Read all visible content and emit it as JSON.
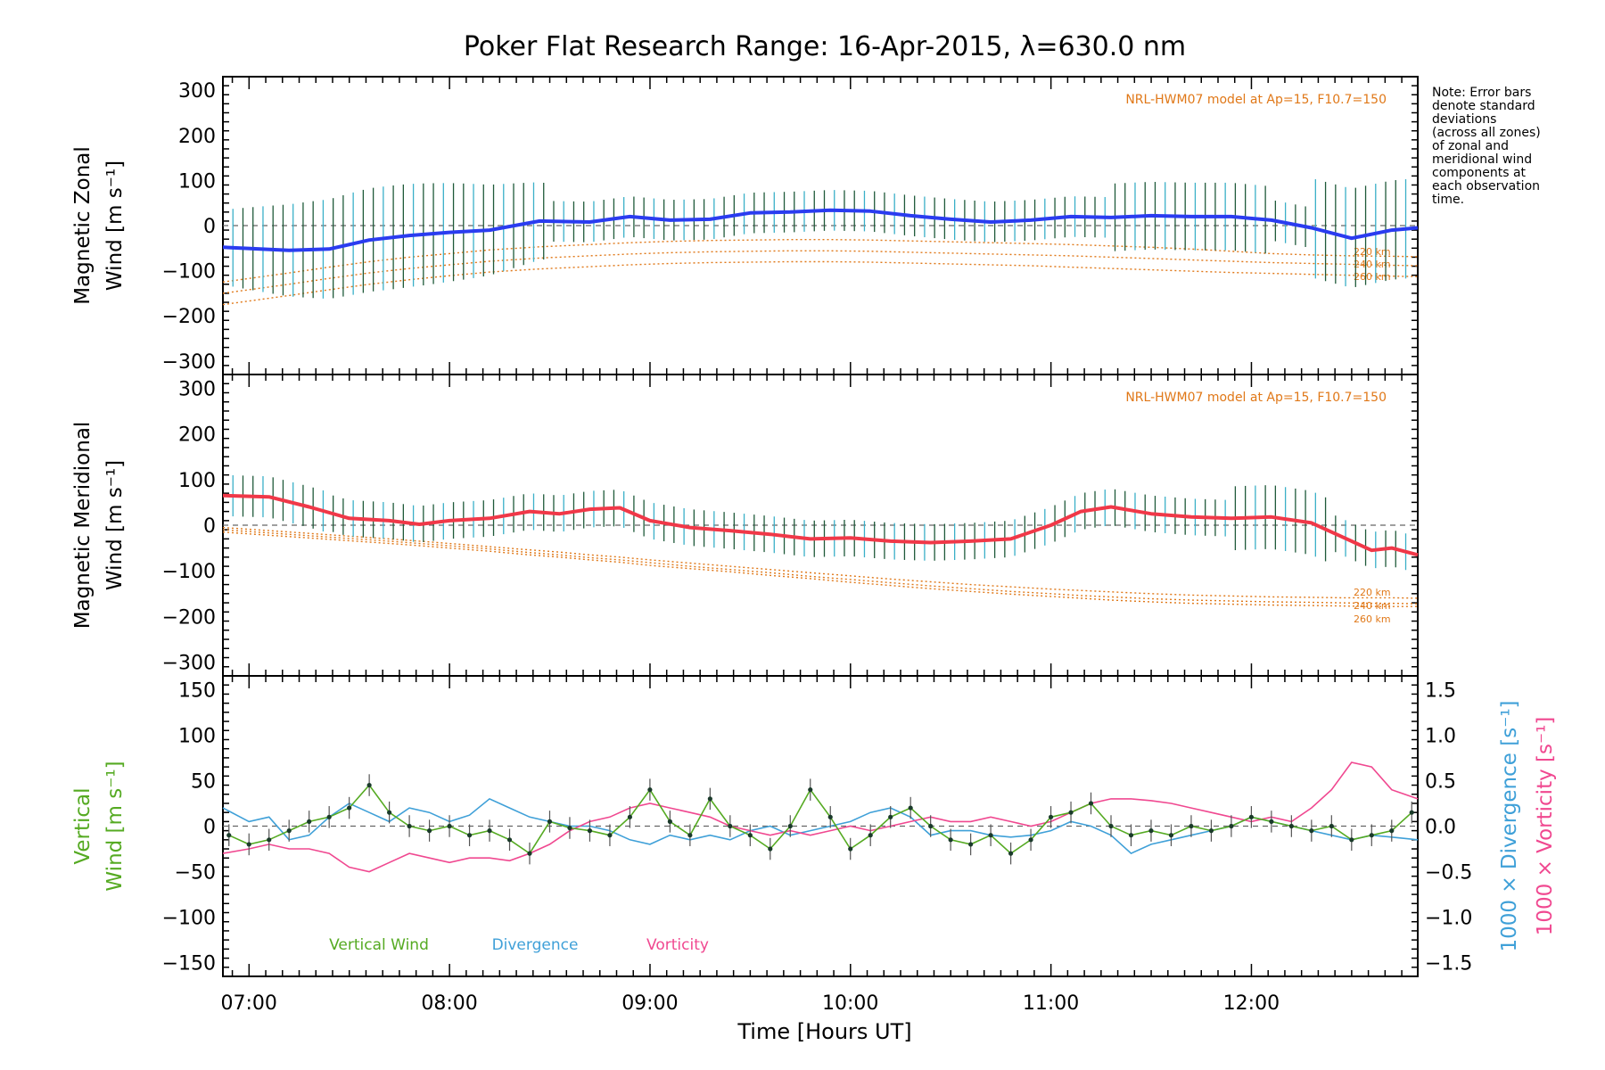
{
  "title": "Poker Flat Research Range: 16-Apr-2015, λ=630.0 nm",
  "xlabel": "Time [Hours UT]",
  "x_ticklabels": [
    "07:00",
    "08:00",
    "09:00",
    "10:00",
    "11:00",
    "12:00"
  ],
  "note_lines": [
    "Note: Error bars",
    "denote standard",
    "deviations",
    "(across all zones)",
    "of zonal and",
    "meridional wind",
    "components at",
    "each observation",
    "time."
  ],
  "model_label": "NRL-HWM07 model at Ap=15, F10.7=150",
  "altitude_labels": [
    "220 km",
    "240 km",
    "260 km"
  ],
  "panel_zonal": {
    "ylabel_line1": "Magnetic Zonal",
    "ylabel_line2": "Wind [m s⁻¹]"
  },
  "panel_meridional": {
    "ylabel_line1": "Magnetic Meridional",
    "ylabel_line2": "Wind [m s⁻¹]"
  },
  "panel_vertical": {
    "ylabel_line1": "Vertical",
    "ylabel_line2": "Wind [m s⁻¹]",
    "right_label_div": "1000 × Divergence [s⁻¹]",
    "right_label_vor": "1000 × Vorticity [s⁻¹]",
    "legend": [
      "Vertical Wind",
      "Divergence",
      "Vorticity"
    ]
  },
  "colors": {
    "zonal": "#2a3cf0",
    "meridional": "#f03848",
    "vertical": "#55aa22",
    "divergence": "#3fa0d8",
    "vorticity": "#f04890",
    "model": "#e07818",
    "errorbar": "#1f5a3a"
  },
  "chart_data": [
    {
      "type": "line",
      "panel": "zonal",
      "x_unit": "hours UT",
      "xlim": [
        6.87,
        12.83
      ],
      "ylim": [
        -330,
        330
      ],
      "yticks": [
        -300,
        -200,
        -100,
        0,
        100,
        200,
        300
      ],
      "x": [
        6.87,
        7.2,
        7.4,
        7.6,
        7.8,
        8.0,
        8.2,
        8.45,
        8.7,
        8.9,
        9.1,
        9.3,
        9.5,
        9.7,
        9.9,
        10.1,
        10.3,
        10.5,
        10.7,
        10.9,
        11.1,
        11.3,
        11.5,
        11.7,
        11.9,
        12.1,
        12.3,
        12.5,
        12.7,
        12.83
      ],
      "series": [
        {
          "values": [
            -48,
            -55,
            -52,
            -32,
            -22,
            -15,
            -10,
            10,
            8,
            20,
            12,
            14,
            28,
            30,
            34,
            32,
            22,
            14,
            8,
            12,
            20,
            18,
            22,
            20,
            20,
            12,
            -5,
            -28,
            -10,
            -5
          ]
        }
      ],
      "model_series": [
        {
          "name": "220 km",
          "values": [
            -125,
            -105,
            -92,
            -80,
            -70,
            -62,
            -54,
            -47,
            -42,
            -38,
            -35,
            -33,
            -32,
            -31,
            -31,
            -32,
            -34,
            -36,
            -38,
            -40,
            -42,
            -45,
            -48,
            -52,
            -57,
            -62,
            -65,
            -67,
            -68,
            -69
          ]
        },
        {
          "name": "240 km",
          "values": [
            -150,
            -130,
            -117,
            -105,
            -95,
            -87,
            -79,
            -72,
            -67,
            -63,
            -60,
            -58,
            -57,
            -56,
            -56,
            -57,
            -59,
            -61,
            -63,
            -65,
            -67,
            -70,
            -73,
            -76,
            -79,
            -82,
            -84,
            -86,
            -88,
            -89
          ]
        },
        {
          "name": "260 km",
          "values": [
            -175,
            -155,
            -142,
            -130,
            -120,
            -111,
            -103,
            -96,
            -91,
            -87,
            -84,
            -82,
            -81,
            -80,
            -80,
            -81,
            -83,
            -85,
            -87,
            -89,
            -92,
            -95,
            -98,
            -101,
            -104,
            -106,
            -108,
            -110,
            -112,
            -113
          ]
        }
      ]
    },
    {
      "type": "line",
      "panel": "meridional",
      "x_unit": "hours UT",
      "xlim": [
        6.87,
        12.83
      ],
      "ylim": [
        -330,
        330
      ],
      "yticks": [
        -300,
        -200,
        -100,
        0,
        100,
        200,
        300
      ],
      "x": [
        6.87,
        7.1,
        7.3,
        7.5,
        7.7,
        7.85,
        8.0,
        8.2,
        8.4,
        8.55,
        8.7,
        8.85,
        9.0,
        9.2,
        9.4,
        9.6,
        9.8,
        10.0,
        10.2,
        10.4,
        10.6,
        10.8,
        11.0,
        11.15,
        11.3,
        11.5,
        11.7,
        11.9,
        12.1,
        12.3,
        12.45,
        12.6,
        12.7,
        12.83
      ],
      "series": [
        {
          "values": [
            65,
            62,
            40,
            15,
            10,
            2,
            10,
            15,
            30,
            25,
            35,
            38,
            10,
            -5,
            -12,
            -20,
            -30,
            -28,
            -35,
            -38,
            -35,
            -30,
            0,
            30,
            40,
            25,
            18,
            15,
            18,
            5,
            -25,
            -55,
            -50,
            -65
          ]
        }
      ],
      "model_series": [
        {
          "name": "220 km",
          "values": [
            -5,
            -12,
            -18,
            -24,
            -30,
            -35,
            -40,
            -47,
            -54,
            -59,
            -65,
            -70,
            -76,
            -83,
            -90,
            -97,
            -104,
            -111,
            -118,
            -124,
            -130,
            -135,
            -140,
            -143,
            -146,
            -150,
            -153,
            -155,
            -157,
            -158,
            -159,
            -159,
            -159,
            -160
          ]
        },
        {
          "name": "240 km",
          "values": [
            -10,
            -17,
            -23,
            -29,
            -35,
            -40,
            -45,
            -52,
            -60,
            -65,
            -71,
            -76,
            -82,
            -90,
            -97,
            -104,
            -112,
            -119,
            -126,
            -133,
            -139,
            -145,
            -150,
            -154,
            -157,
            -161,
            -164,
            -166,
            -168,
            -169,
            -170,
            -171,
            -171,
            -172
          ]
        },
        {
          "name": "260 km",
          "values": [
            -15,
            -22,
            -28,
            -34,
            -40,
            -45,
            -50,
            -57,
            -65,
            -70,
            -76,
            -81,
            -88,
            -95,
            -102,
            -110,
            -117,
            -125,
            -132,
            -139,
            -145,
            -151,
            -156,
            -160,
            -164,
            -168,
            -171,
            -173,
            -175,
            -176,
            -177,
            -178,
            -178,
            -178
          ]
        }
      ]
    },
    {
      "type": "line",
      "panel": "vertical",
      "x_unit": "hours UT",
      "xlim": [
        6.87,
        12.83
      ],
      "ylim": [
        -165,
        165
      ],
      "yticks": [
        -150,
        -100,
        -50,
        0,
        50,
        100,
        150
      ],
      "y2lim": [
        -1.65,
        1.65
      ],
      "y2ticks": [
        -1.5,
        -1.0,
        -0.5,
        0.0,
        0.5,
        1.0,
        1.5
      ],
      "vertical_wind": {
        "x": [
          6.9,
          7.0,
          7.1,
          7.2,
          7.3,
          7.4,
          7.5,
          7.6,
          7.7,
          7.8,
          7.9,
          8.0,
          8.1,
          8.2,
          8.3,
          8.4,
          8.5,
          8.6,
          8.7,
          8.8,
          8.9,
          9.0,
          9.1,
          9.2,
          9.3,
          9.4,
          9.5,
          9.6,
          9.7,
          9.8,
          9.9,
          10.0,
          10.1,
          10.2,
          10.3,
          10.4,
          10.5,
          10.6,
          10.7,
          10.8,
          10.9,
          11.0,
          11.1,
          11.2,
          11.3,
          11.4,
          11.5,
          11.6,
          11.7,
          11.8,
          11.9,
          12.0,
          12.1,
          12.2,
          12.3,
          12.4,
          12.5,
          12.6,
          12.7,
          12.8
        ],
        "values": [
          -10,
          -20,
          -15,
          -5,
          5,
          10,
          20,
          45,
          15,
          0,
          -5,
          0,
          -10,
          -5,
          -15,
          -30,
          5,
          -2,
          -5,
          -10,
          10,
          40,
          5,
          -10,
          30,
          0,
          -10,
          -25,
          0,
          40,
          10,
          -25,
          -10,
          10,
          20,
          0,
          -15,
          -20,
          -10,
          -30,
          -15,
          10,
          15,
          25,
          0,
          -10,
          -5,
          -10,
          0,
          -5,
          0,
          10,
          5,
          0,
          -5,
          0,
          -15,
          -10,
          -5,
          15
        ]
      },
      "divergence": {
        "x": [
          6.87,
          7.0,
          7.1,
          7.2,
          7.3,
          7.4,
          7.5,
          7.6,
          7.7,
          7.8,
          7.9,
          8.0,
          8.1,
          8.2,
          8.3,
          8.4,
          8.5,
          8.6,
          8.7,
          8.8,
          8.9,
          9.0,
          9.1,
          9.2,
          9.3,
          9.4,
          9.5,
          9.6,
          9.7,
          9.8,
          9.9,
          10.0,
          10.1,
          10.2,
          10.3,
          10.4,
          10.5,
          10.6,
          10.7,
          10.8,
          10.9,
          11.0,
          11.1,
          11.2,
          11.3,
          11.4,
          11.5,
          11.6,
          11.7,
          11.8,
          11.9,
          12.0,
          12.1,
          12.2,
          12.3,
          12.4,
          12.5,
          12.6,
          12.7,
          12.83
        ],
        "values": [
          0.2,
          0.05,
          0.1,
          -0.15,
          -0.1,
          0.1,
          0.25,
          0.15,
          0.05,
          0.2,
          0.15,
          0.05,
          0.12,
          0.3,
          0.2,
          0.1,
          0.05,
          0.0,
          0.0,
          -0.05,
          -0.15,
          -0.2,
          -0.1,
          -0.15,
          -0.1,
          -0.15,
          -0.05,
          0.0,
          -0.1,
          -0.05,
          0.0,
          0.05,
          0.15,
          0.2,
          0.1,
          -0.1,
          -0.05,
          -0.05,
          -0.1,
          -0.12,
          -0.1,
          -0.05,
          0.05,
          0.0,
          -0.1,
          -0.3,
          -0.2,
          -0.15,
          -0.1,
          -0.05,
          0.0,
          0.1,
          0.05,
          0.0,
          -0.05,
          -0.1,
          -0.15,
          -0.1,
          -0.12,
          -0.15
        ]
      },
      "vorticity": {
        "x": [
          6.87,
          7.0,
          7.1,
          7.2,
          7.3,
          7.4,
          7.5,
          7.6,
          7.7,
          7.8,
          7.9,
          8.0,
          8.1,
          8.2,
          8.3,
          8.4,
          8.5,
          8.6,
          8.7,
          8.8,
          8.9,
          9.0,
          9.1,
          9.2,
          9.3,
          9.4,
          9.5,
          9.6,
          9.7,
          9.8,
          9.9,
          10.0,
          10.1,
          10.2,
          10.3,
          10.4,
          10.5,
          10.6,
          10.7,
          10.8,
          10.9,
          11.0,
          11.1,
          11.2,
          11.3,
          11.4,
          11.5,
          11.6,
          11.7,
          11.8,
          11.9,
          12.0,
          12.1,
          12.2,
          12.3,
          12.4,
          12.5,
          12.6,
          12.7,
          12.83
        ],
        "values": [
          -0.3,
          -0.25,
          -0.2,
          -0.25,
          -0.25,
          -0.3,
          -0.45,
          -0.5,
          -0.4,
          -0.3,
          -0.35,
          -0.4,
          -0.35,
          -0.35,
          -0.38,
          -0.3,
          -0.2,
          -0.05,
          0.05,
          0.1,
          0.2,
          0.25,
          0.2,
          0.15,
          0.1,
          0.0,
          -0.05,
          -0.1,
          -0.05,
          -0.1,
          -0.05,
          0.0,
          -0.05,
          0.0,
          0.05,
          0.1,
          0.05,
          0.05,
          0.1,
          0.05,
          0.0,
          0.05,
          0.15,
          0.25,
          0.3,
          0.3,
          0.28,
          0.25,
          0.2,
          0.15,
          0.1,
          0.05,
          0.1,
          0.05,
          0.2,
          0.4,
          0.7,
          0.65,
          0.4,
          0.3
        ]
      }
    }
  ]
}
